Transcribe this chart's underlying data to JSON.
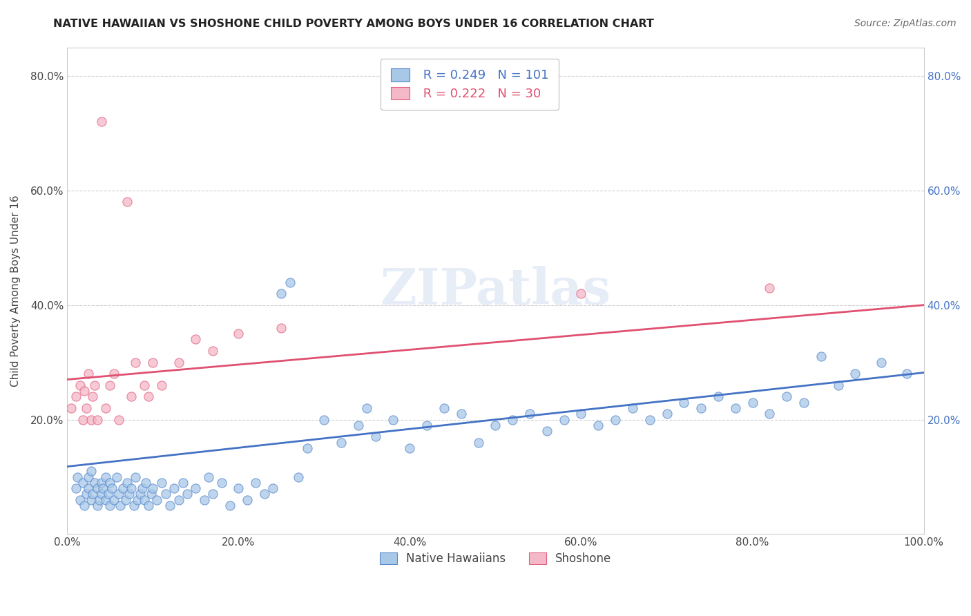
{
  "title": "NATIVE HAWAIIAN VS SHOSHONE CHILD POVERTY AMONG BOYS UNDER 16 CORRELATION CHART",
  "source": "Source: ZipAtlas.com",
  "ylabel": "Child Poverty Among Boys Under 16",
  "xlim": [
    0.0,
    1.0
  ],
  "ylim": [
    0.0,
    0.85
  ],
  "x_ticks": [
    0.0,
    0.2,
    0.4,
    0.6,
    0.8,
    1.0
  ],
  "x_tick_labels": [
    "0.0%",
    "20.0%",
    "40.0%",
    "60.0%",
    "80.0%",
    "100.0%"
  ],
  "y_ticks": [
    0.2,
    0.4,
    0.6,
    0.8
  ],
  "y_tick_labels": [
    "20.0%",
    "40.0%",
    "60.0%",
    "80.0%"
  ],
  "legend_R1": "R = 0.249",
  "legend_N1": "N = 101",
  "legend_R2": "R = 0.222",
  "legend_N2": "N = 30",
  "color_blue": "#a8c8e8",
  "color_pink": "#f4b8c8",
  "color_blue_edge": "#5588cc",
  "color_pink_edge": "#e06080",
  "color_blue_line": "#4472c4",
  "color_pink_line": "#e05070",
  "color_blue_text": "#4472c4",
  "color_pink_text": "#e05070",
  "marker_size": 90,
  "background_color": "#ffffff",
  "watermark_text": "ZIPatlas",
  "native_hawaiians_label": "Native Hawaiians",
  "shoshone_label": "Shoshone",
  "native_hawaiians_x": [
    0.01,
    0.012,
    0.015,
    0.018,
    0.02,
    0.022,
    0.025,
    0.025,
    0.028,
    0.028,
    0.03,
    0.032,
    0.035,
    0.035,
    0.038,
    0.04,
    0.04,
    0.042,
    0.045,
    0.045,
    0.048,
    0.05,
    0.05,
    0.052,
    0.055,
    0.058,
    0.06,
    0.062,
    0.065,
    0.068,
    0.07,
    0.072,
    0.075,
    0.078,
    0.08,
    0.082,
    0.085,
    0.088,
    0.09,
    0.092,
    0.095,
    0.098,
    0.1,
    0.105,
    0.11,
    0.115,
    0.12,
    0.125,
    0.13,
    0.135,
    0.14,
    0.15,
    0.16,
    0.165,
    0.17,
    0.18,
    0.19,
    0.2,
    0.21,
    0.22,
    0.23,
    0.24,
    0.25,
    0.26,
    0.27,
    0.28,
    0.3,
    0.32,
    0.34,
    0.35,
    0.36,
    0.38,
    0.4,
    0.42,
    0.44,
    0.46,
    0.48,
    0.5,
    0.52,
    0.54,
    0.56,
    0.58,
    0.6,
    0.62,
    0.64,
    0.66,
    0.68,
    0.7,
    0.72,
    0.74,
    0.76,
    0.78,
    0.8,
    0.82,
    0.84,
    0.86,
    0.88,
    0.9,
    0.92,
    0.95,
    0.98
  ],
  "native_hawaiians_y": [
    0.08,
    0.1,
    0.06,
    0.09,
    0.05,
    0.07,
    0.08,
    0.1,
    0.06,
    0.11,
    0.07,
    0.09,
    0.05,
    0.08,
    0.06,
    0.09,
    0.07,
    0.08,
    0.06,
    0.1,
    0.07,
    0.05,
    0.09,
    0.08,
    0.06,
    0.1,
    0.07,
    0.05,
    0.08,
    0.06,
    0.09,
    0.07,
    0.08,
    0.05,
    0.1,
    0.06,
    0.07,
    0.08,
    0.06,
    0.09,
    0.05,
    0.07,
    0.08,
    0.06,
    0.09,
    0.07,
    0.05,
    0.08,
    0.06,
    0.09,
    0.07,
    0.08,
    0.06,
    0.1,
    0.07,
    0.09,
    0.05,
    0.08,
    0.06,
    0.09,
    0.07,
    0.08,
    0.42,
    0.44,
    0.1,
    0.15,
    0.2,
    0.16,
    0.19,
    0.22,
    0.17,
    0.2,
    0.15,
    0.19,
    0.22,
    0.21,
    0.16,
    0.19,
    0.2,
    0.21,
    0.18,
    0.2,
    0.21,
    0.19,
    0.2,
    0.22,
    0.2,
    0.21,
    0.23,
    0.22,
    0.24,
    0.22,
    0.23,
    0.21,
    0.24,
    0.23,
    0.31,
    0.26,
    0.28,
    0.3,
    0.28
  ],
  "shoshone_x": [
    0.005,
    0.01,
    0.015,
    0.018,
    0.02,
    0.022,
    0.025,
    0.028,
    0.03,
    0.032,
    0.035,
    0.04,
    0.045,
    0.05,
    0.055,
    0.06,
    0.07,
    0.075,
    0.08,
    0.09,
    0.095,
    0.1,
    0.11,
    0.13,
    0.15,
    0.17,
    0.2,
    0.25,
    0.6,
    0.82
  ],
  "shoshone_y": [
    0.22,
    0.24,
    0.26,
    0.2,
    0.25,
    0.22,
    0.28,
    0.2,
    0.24,
    0.26,
    0.2,
    0.72,
    0.22,
    0.26,
    0.28,
    0.2,
    0.58,
    0.24,
    0.3,
    0.26,
    0.24,
    0.3,
    0.26,
    0.3,
    0.34,
    0.32,
    0.35,
    0.36,
    0.42,
    0.43
  ],
  "nh_line_x0": 0.0,
  "nh_line_y0": 0.118,
  "nh_line_x1": 1.0,
  "nh_line_y1": 0.282,
  "sh_line_x0": 0.0,
  "sh_line_y0": 0.27,
  "sh_line_x1": 1.0,
  "sh_line_y1": 0.4
}
